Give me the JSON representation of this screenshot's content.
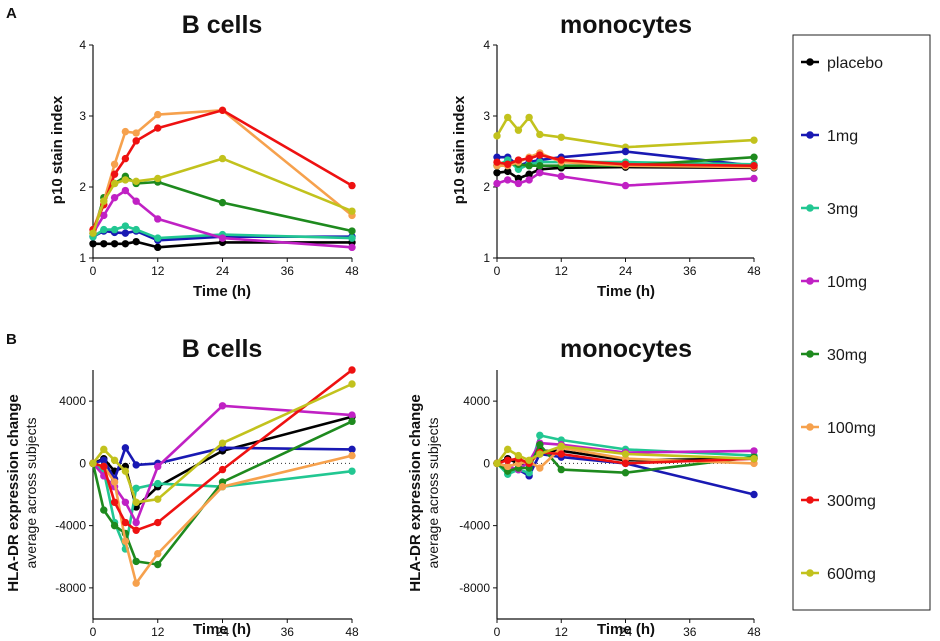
{
  "figure": {
    "panel_labels": [
      "A",
      "B"
    ],
    "legend": [
      {
        "name": "placebo",
        "color": "#000000"
      },
      {
        "name": "1mg",
        "color": "#1919b3"
      },
      {
        "name": "3mg",
        "color": "#22c792"
      },
      {
        "name": "10mg",
        "color": "#c021c4"
      },
      {
        "name": "30mg",
        "color": "#1e8a1e"
      },
      {
        "name": "100mg",
        "color": "#f6a14d"
      },
      {
        "name": "300mg",
        "color": "#ee1111"
      },
      {
        "name": "600mg",
        "color": "#c2c21d"
      }
    ]
  },
  "chart_data": [
    {
      "type": "line",
      "title": "B cells",
      "xlabel": "Time (h)",
      "ylabel": "p10 stain index",
      "ylabel2": "",
      "xlim": [
        0,
        48
      ],
      "ylim": [
        1,
        4
      ],
      "xticks": [
        0,
        12,
        24,
        36,
        48
      ],
      "yticks": [
        1,
        2,
        3,
        4
      ],
      "zero_line": false,
      "x": [
        0,
        2,
        4,
        6,
        8,
        12,
        24,
        48
      ],
      "series": [
        {
          "name": "placebo",
          "values": [
            1.2,
            1.2,
            1.2,
            1.2,
            1.23,
            1.15,
            1.22,
            1.22
          ]
        },
        {
          "name": "1mg",
          "values": [
            1.3,
            1.38,
            1.36,
            1.35,
            1.38,
            1.25,
            1.3,
            1.3
          ]
        },
        {
          "name": "3mg",
          "values": [
            1.3,
            1.4,
            1.4,
            1.45,
            1.4,
            1.28,
            1.33,
            1.28
          ]
        },
        {
          "name": "10mg",
          "values": [
            1.35,
            1.6,
            1.85,
            1.95,
            1.8,
            1.55,
            1.28,
            1.15
          ]
        },
        {
          "name": "30mg",
          "values": [
            1.35,
            1.85,
            2.05,
            2.15,
            2.05,
            2.07,
            1.78,
            1.38
          ]
        },
        {
          "name": "100mg",
          "values": [
            1.4,
            1.8,
            2.32,
            2.78,
            2.76,
            3.02,
            3.08,
            1.6
          ]
        },
        {
          "name": "300mg",
          "values": [
            1.4,
            1.75,
            2.18,
            2.4,
            2.65,
            2.83,
            3.08,
            2.02
          ]
        },
        {
          "name": "600mg",
          "values": [
            1.35,
            1.8,
            2.05,
            2.1,
            2.08,
            2.12,
            2.4,
            1.66
          ]
        }
      ]
    },
    {
      "type": "line",
      "title": "monocytes",
      "xlabel": "Time (h)",
      "ylabel": "p10 stain index",
      "ylabel2": "",
      "xlim": [
        0,
        48
      ],
      "ylim": [
        1,
        4
      ],
      "xticks": [
        0,
        12,
        24,
        36,
        48
      ],
      "yticks": [
        1,
        2,
        3,
        4
      ],
      "zero_line": false,
      "x": [
        0,
        2,
        4,
        6,
        8,
        12,
        24,
        48
      ],
      "series": [
        {
          "name": "600mg",
          "values": [
            2.72,
            2.98,
            2.8,
            2.98,
            2.74,
            2.7,
            2.56,
            2.66
          ]
        },
        {
          "name": "placebo",
          "values": [
            2.2,
            2.22,
            2.12,
            2.18,
            2.25,
            2.27,
            2.28,
            2.27
          ]
        },
        {
          "name": "1mg",
          "values": [
            2.42,
            2.42,
            2.3,
            2.35,
            2.38,
            2.42,
            2.5,
            2.3
          ]
        },
        {
          "name": "3mg",
          "values": [
            2.3,
            2.38,
            2.25,
            2.32,
            2.35,
            2.35,
            2.35,
            2.32
          ]
        },
        {
          "name": "10mg",
          "values": [
            2.05,
            2.1,
            2.05,
            2.1,
            2.2,
            2.15,
            2.02,
            2.12
          ]
        },
        {
          "name": "30mg",
          "values": [
            2.3,
            2.32,
            2.32,
            2.3,
            2.3,
            2.3,
            2.3,
            2.42
          ]
        },
        {
          "name": "100mg",
          "values": [
            2.3,
            2.3,
            2.35,
            2.42,
            2.48,
            2.35,
            2.3,
            2.28
          ]
        },
        {
          "name": "300mg",
          "values": [
            2.35,
            2.32,
            2.38,
            2.4,
            2.45,
            2.38,
            2.32,
            2.3
          ]
        }
      ]
    },
    {
      "type": "line",
      "title": "B cells",
      "xlabel": "Time (h)",
      "ylabel": "HLA-DR expression change",
      "ylabel2": "average across subjects",
      "xlim": [
        0,
        48
      ],
      "ylim": [
        -10000,
        6000
      ],
      "xticks": [
        0,
        12,
        24,
        36,
        48
      ],
      "yticks": [
        -8000,
        -4000,
        0,
        4000
      ],
      "zero_line": true,
      "x": [
        0,
        2,
        4,
        6,
        8,
        12,
        24,
        48
      ],
      "series": [
        {
          "name": "placebo",
          "values": [
            0,
            300,
            -500,
            -200,
            -2800,
            -1500,
            800,
            3000
          ]
        },
        {
          "name": "1mg",
          "values": [
            0,
            200,
            -1000,
            1000,
            -100,
            0,
            1000,
            900
          ]
        },
        {
          "name": "3mg",
          "values": [
            0,
            -500,
            -3800,
            -5500,
            -1600,
            -1300,
            -1500,
            -500
          ]
        },
        {
          "name": "10mg",
          "values": [
            0,
            -800,
            -1500,
            -2500,
            -3800,
            -200,
            3700,
            3100
          ]
        },
        {
          "name": "30mg",
          "values": [
            0,
            -3000,
            -4000,
            -4500,
            -6300,
            -6500,
            -1200,
            2700
          ]
        },
        {
          "name": "100mg",
          "values": [
            0,
            -200,
            -1200,
            -5000,
            -7700,
            -5800,
            -1500,
            500
          ]
        },
        {
          "name": "300mg",
          "values": [
            0,
            -200,
            -2500,
            -3800,
            -4300,
            -3800,
            -400,
            6000
          ]
        },
        {
          "name": "600mg",
          "values": [
            0,
            900,
            200,
            -500,
            -2500,
            -2300,
            1300,
            5100
          ]
        }
      ]
    },
    {
      "type": "line",
      "title": "monocytes",
      "xlabel": "Time (h)",
      "ylabel": "HLA-DR expression change",
      "ylabel2": "average across subjects",
      "xlim": [
        0,
        48
      ],
      "ylim": [
        -10000,
        6000
      ],
      "xticks": [
        0,
        12,
        24,
        36,
        48
      ],
      "yticks": [
        -8000,
        -4000,
        0,
        4000
      ],
      "zero_line": true,
      "x": [
        0,
        2,
        4,
        6,
        8,
        12,
        24,
        48
      ],
      "series": [
        {
          "name": "placebo",
          "values": [
            0,
            300,
            0,
            0,
            800,
            800,
            200,
            300
          ]
        },
        {
          "name": "1mg",
          "values": [
            0,
            -200,
            -400,
            -800,
            600,
            400,
            0,
            -2000
          ]
        },
        {
          "name": "3mg",
          "values": [
            0,
            -700,
            -400,
            -600,
            1800,
            1500,
            900,
            500
          ]
        },
        {
          "name": "10mg",
          "values": [
            0,
            -200,
            -400,
            100,
            1300,
            1200,
            700,
            800
          ]
        },
        {
          "name": "30mg",
          "values": [
            0,
            -500,
            -300,
            -300,
            1200,
            -400,
            -600,
            400
          ]
        },
        {
          "name": "100mg",
          "values": [
            0,
            -200,
            0,
            100,
            -300,
            1000,
            300,
            0
          ]
        },
        {
          "name": "300mg",
          "values": [
            0,
            200,
            300,
            0,
            700,
            600,
            0,
            300
          ]
        },
        {
          "name": "600mg",
          "values": [
            0,
            900,
            500,
            200,
            600,
            1100,
            600,
            300
          ]
        }
      ]
    }
  ]
}
